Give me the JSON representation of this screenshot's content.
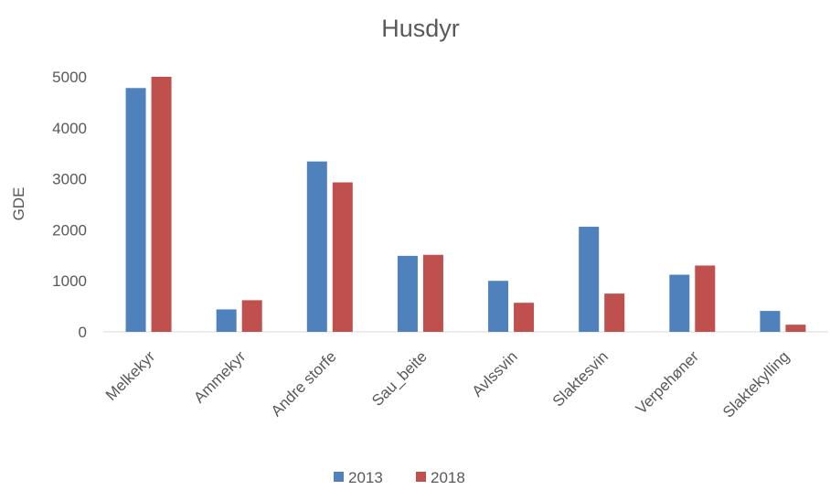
{
  "chart_data": {
    "type": "bar",
    "title": "Husdyr",
    "y_label": "GDE",
    "categories": [
      "Melkekyr",
      "Ammekyr",
      "Andre storfe",
      "Sau_beite",
      "Avlssvin",
      "Slaktesvin",
      "Verpehøner",
      "Slaktekylling"
    ],
    "series": [
      {
        "name": "2013",
        "color": "#4f81bd",
        "values": [
          4780,
          440,
          3340,
          1490,
          1000,
          2060,
          1120,
          410
        ]
      },
      {
        "name": "2018",
        "color": "#c0504d",
        "values": [
          5000,
          620,
          2930,
          1510,
          570,
          750,
          1300,
          140
        ]
      }
    ],
    "ylim": [
      0,
      5000
    ],
    "yticks": [
      0,
      1000,
      2000,
      3000,
      4000,
      5000
    ],
    "grid": false
  }
}
